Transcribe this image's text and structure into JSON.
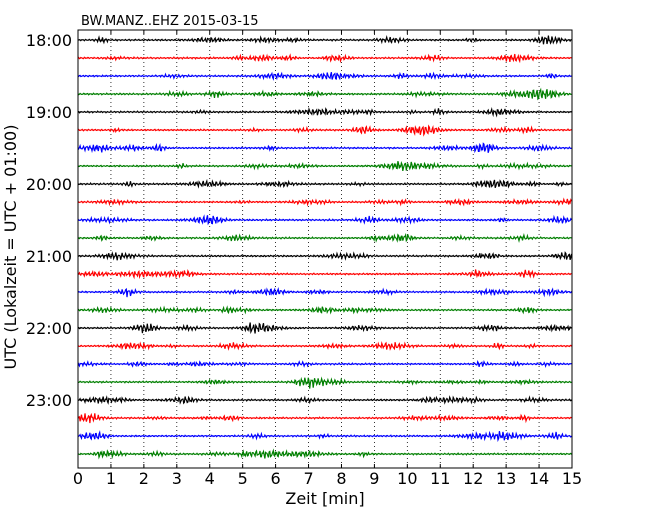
{
  "chart_data": {
    "type": "line",
    "title": "BW.MANZ..EHZ 2015-03-15",
    "xlabel": "Zeit  [min]",
    "ylabel": "UTC (Lokalzeit = UTC + 01:00)",
    "xlim": [
      0,
      15
    ],
    "x_ticks": [
      "0",
      "1",
      "2",
      "3",
      "4",
      "5",
      "6",
      "7",
      "8",
      "9",
      "10",
      "11",
      "12",
      "13",
      "14",
      "15"
    ],
    "y_ticks": [
      "18:00",
      "19:00",
      "20:00",
      "21:00",
      "22:00",
      "23:00"
    ],
    "grid": "vertical dotted lines at each minute",
    "trace_interval_minutes": 15,
    "traces_start": "18:00",
    "trace_count": 24,
    "trace_colors": [
      "#000000",
      "#ff0000",
      "#0000ff",
      "#007f00"
    ]
  }
}
